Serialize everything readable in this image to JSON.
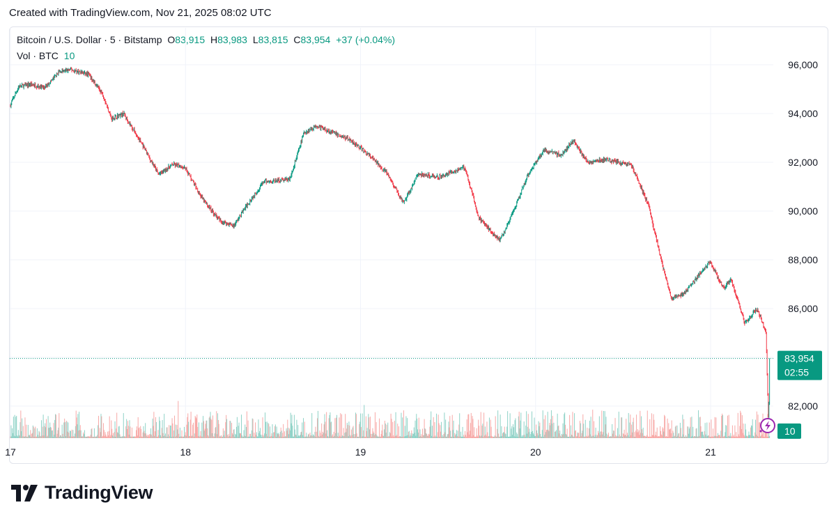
{
  "header": {
    "created_text": "Created with TradingView.com, Nov 21, 2025 08:02 UTC"
  },
  "legend": {
    "symbol": "Bitcoin / U.S. Dollar · 5 · Bitstamp",
    "o_label": "O",
    "o_value": "83,915",
    "h_label": "H",
    "h_value": "83,983",
    "l_label": "L",
    "l_value": "83,815",
    "c_label": "C",
    "c_value": "83,954",
    "change": "+37 (+0.04%)",
    "vol_label": "Vol · BTC",
    "vol_value": "10"
  },
  "brand": {
    "name": "TradingView"
  },
  "colors": {
    "up": "#089981",
    "down": "#f23645",
    "up_vol": "#8fd2c7",
    "down_vol": "#f7a9a7",
    "grid": "#f0f3fa",
    "text": "#131722"
  },
  "chart_data": {
    "type": "candlestick",
    "title": "Bitcoin / U.S. Dollar · 5 · Bitstamp",
    "y_ticks": [
      82000,
      84000,
      86000,
      88000,
      90000,
      92000,
      94000,
      96000
    ],
    "y_tick_labels": [
      "82,000",
      "84,000",
      "86,000",
      "88,000",
      "90,000",
      "92,000",
      "94,000",
      "96,000"
    ],
    "ylim": [
      80600,
      97100
    ],
    "x_ticks": [
      17,
      18,
      19,
      20,
      21
    ],
    "x_tick_labels": [
      "17",
      "18",
      "19",
      "20",
      "21"
    ],
    "x_range_days": [
      17.0,
      21.34
    ],
    "grid": true,
    "last_price": 83954,
    "last_price_label": "83,954",
    "countdown": "02:55",
    "volume_label": "10",
    "price_path": [
      [
        17.0,
        94300
      ],
      [
        17.05,
        95100
      ],
      [
        17.12,
        95200
      ],
      [
        17.2,
        95050
      ],
      [
        17.28,
        95700
      ],
      [
        17.35,
        95800
      ],
      [
        17.45,
        95600
      ],
      [
        17.53,
        94800
      ],
      [
        17.58,
        93800
      ],
      [
        17.65,
        94000
      ],
      [
        17.75,
        92800
      ],
      [
        17.85,
        91500
      ],
      [
        17.93,
        91900
      ],
      [
        18.0,
        91800
      ],
      [
        18.1,
        90500
      ],
      [
        18.2,
        89600
      ],
      [
        18.28,
        89400
      ],
      [
        18.35,
        90200
      ],
      [
        18.45,
        91200
      ],
      [
        18.6,
        91300
      ],
      [
        18.68,
        93200
      ],
      [
        18.75,
        93500
      ],
      [
        18.85,
        93200
      ],
      [
        18.95,
        92900
      ],
      [
        19.05,
        92300
      ],
      [
        19.15,
        91600
      ],
      [
        19.25,
        90300
      ],
      [
        19.33,
        91500
      ],
      [
        19.45,
        91400
      ],
      [
        19.6,
        91800
      ],
      [
        19.68,
        89700
      ],
      [
        19.8,
        88800
      ],
      [
        19.88,
        90000
      ],
      [
        19.96,
        91500
      ],
      [
        20.05,
        92500
      ],
      [
        20.15,
        92300
      ],
      [
        20.22,
        92900
      ],
      [
        20.3,
        92000
      ],
      [
        20.4,
        92100
      ],
      [
        20.55,
        91900
      ],
      [
        20.65,
        90200
      ],
      [
        20.72,
        88000
      ],
      [
        20.78,
        86400
      ],
      [
        20.85,
        86600
      ],
      [
        20.95,
        87500
      ],
      [
        21.0,
        87900
      ],
      [
        21.08,
        86800
      ],
      [
        21.12,
        87200
      ],
      [
        21.2,
        85400
      ],
      [
        21.27,
        86000
      ],
      [
        21.32,
        85000
      ],
      [
        21.335,
        81100
      ],
      [
        21.34,
        83954
      ]
    ]
  }
}
